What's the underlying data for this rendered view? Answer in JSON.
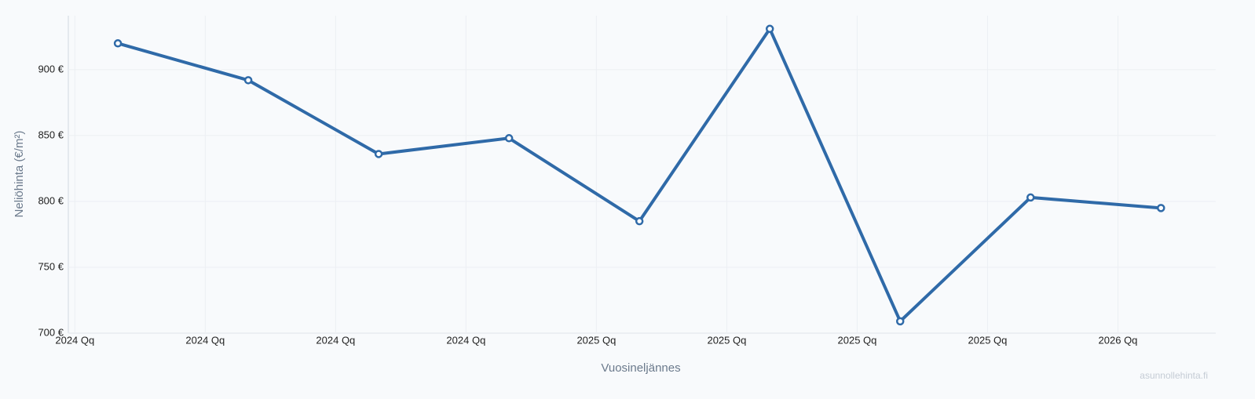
{
  "chart_data": {
    "type": "line",
    "x_label": "Vuosineljännes",
    "y_label": "Neliöhinta (€/m²)",
    "watermark": "asunnollehinta.fi",
    "x": [
      0.33,
      1.33,
      2.33,
      3.33,
      4.33,
      5.33,
      6.33,
      7.33,
      8.33
    ],
    "series": [
      {
        "color": "#2f6aa8",
        "values": [
          920,
          892,
          836,
          848,
          785,
          931,
          709,
          803,
          795
        ]
      }
    ],
    "xlim": [
      -0.05,
      8.75
    ],
    "xticks": [
      {
        "value": 0,
        "label": "2024 Qq"
      },
      {
        "value": 1,
        "label": "2024 Qq"
      },
      {
        "value": 2,
        "label": "2024 Qq"
      },
      {
        "value": 3,
        "label": "2024 Qq"
      },
      {
        "value": 4,
        "label": "2025 Qq"
      },
      {
        "value": 5,
        "label": "2025 Qq"
      },
      {
        "value": 6,
        "label": "2025 Qq"
      },
      {
        "value": 7,
        "label": "2025 Qq"
      },
      {
        "value": 8,
        "label": "2026 Qq"
      }
    ],
    "ylim": [
      700,
      941
    ],
    "yticks": [
      {
        "value": 700,
        "label": "700 €"
      },
      {
        "value": 750,
        "label": "750 €"
      },
      {
        "value": 800,
        "label": "800 €"
      },
      {
        "value": 850,
        "label": "850 €"
      },
      {
        "value": 900,
        "label": "900 €"
      }
    ],
    "grid": true
  }
}
